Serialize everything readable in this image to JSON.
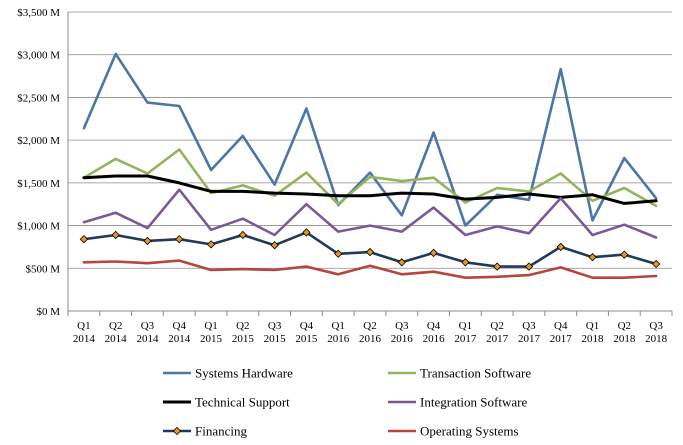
{
  "chart_data": {
    "type": "line",
    "title": "",
    "xlabel": "",
    "ylabel": "",
    "ylim": [
      0,
      3500
    ],
    "y_ticks": [
      0,
      500,
      1000,
      1500,
      2000,
      2500,
      3000,
      3500
    ],
    "y_tick_labels": [
      "$0 M",
      "$500 M",
      "$1,000 M",
      "$1,500 M",
      "$2,000 M",
      "$2,500 M",
      "$3,000 M",
      "$3,500 M"
    ],
    "grid": "horizontal",
    "legend_position": "bottom",
    "categories": [
      {
        "q": "Q1",
        "y": "2014"
      },
      {
        "q": "Q2",
        "y": "2014"
      },
      {
        "q": "Q3",
        "y": "2014"
      },
      {
        "q": "Q4",
        "y": "2014"
      },
      {
        "q": "Q1",
        "y": "2015"
      },
      {
        "q": "Q2",
        "y": "2015"
      },
      {
        "q": "Q3",
        "y": "2015"
      },
      {
        "q": "Q4",
        "y": "2015"
      },
      {
        "q": "Q1",
        "y": "2016"
      },
      {
        "q": "Q2",
        "y": "2016"
      },
      {
        "q": "Q3",
        "y": "2016"
      },
      {
        "q": "Q4",
        "y": "2016"
      },
      {
        "q": "Q1",
        "y": "2017"
      },
      {
        "q": "Q2",
        "y": "2017"
      },
      {
        "q": "Q3",
        "y": "2017"
      },
      {
        "q": "Q4",
        "y": "2017"
      },
      {
        "q": "Q1",
        "y": "2018"
      },
      {
        "q": "Q2",
        "y": "2018"
      },
      {
        "q": "Q3",
        "y": "2018"
      }
    ],
    "series": [
      {
        "name": "Systems Hardware",
        "color": "#4a76a8",
        "marker": "none",
        "values": [
          2140,
          3010,
          2440,
          2400,
          1650,
          2050,
          1480,
          2370,
          1240,
          1620,
          1120,
          2090,
          1000,
          1360,
          1300,
          2830,
          1060,
          1790,
          1320
        ]
      },
      {
        "name": "Transaction Software",
        "color": "#93b35c",
        "marker": "none",
        "values": [
          1560,
          1780,
          1610,
          1890,
          1380,
          1470,
          1350,
          1620,
          1250,
          1570,
          1520,
          1560,
          1270,
          1440,
          1400,
          1610,
          1290,
          1440,
          1230
        ]
      },
      {
        "name": "Technical Support",
        "color": "#000000",
        "marker": "none",
        "values": [
          1560,
          1580,
          1580,
          1500,
          1400,
          1400,
          1380,
          1370,
          1350,
          1350,
          1380,
          1370,
          1310,
          1330,
          1370,
          1330,
          1360,
          1260,
          1290
        ]
      },
      {
        "name": "Integration Software",
        "color": "#7a5a96",
        "marker": "none",
        "values": [
          1040,
          1150,
          970,
          1420,
          950,
          1080,
          890,
          1250,
          930,
          1000,
          930,
          1210,
          890,
          990,
          910,
          1320,
          890,
          1010,
          860
        ]
      },
      {
        "name": "Financing",
        "color": "#1f3a5a",
        "marker": "diamond",
        "marker_color": "#e8951e",
        "values": [
          840,
          890,
          820,
          840,
          780,
          890,
          770,
          920,
          670,
          690,
          570,
          680,
          570,
          520,
          520,
          750,
          630,
          660,
          550
        ]
      },
      {
        "name": "Operating Systems",
        "color": "#b5463e",
        "marker": "none",
        "values": [
          570,
          580,
          560,
          590,
          480,
          490,
          480,
          520,
          430,
          530,
          430,
          460,
          390,
          400,
          420,
          510,
          390,
          390,
          410
        ]
      }
    ]
  }
}
